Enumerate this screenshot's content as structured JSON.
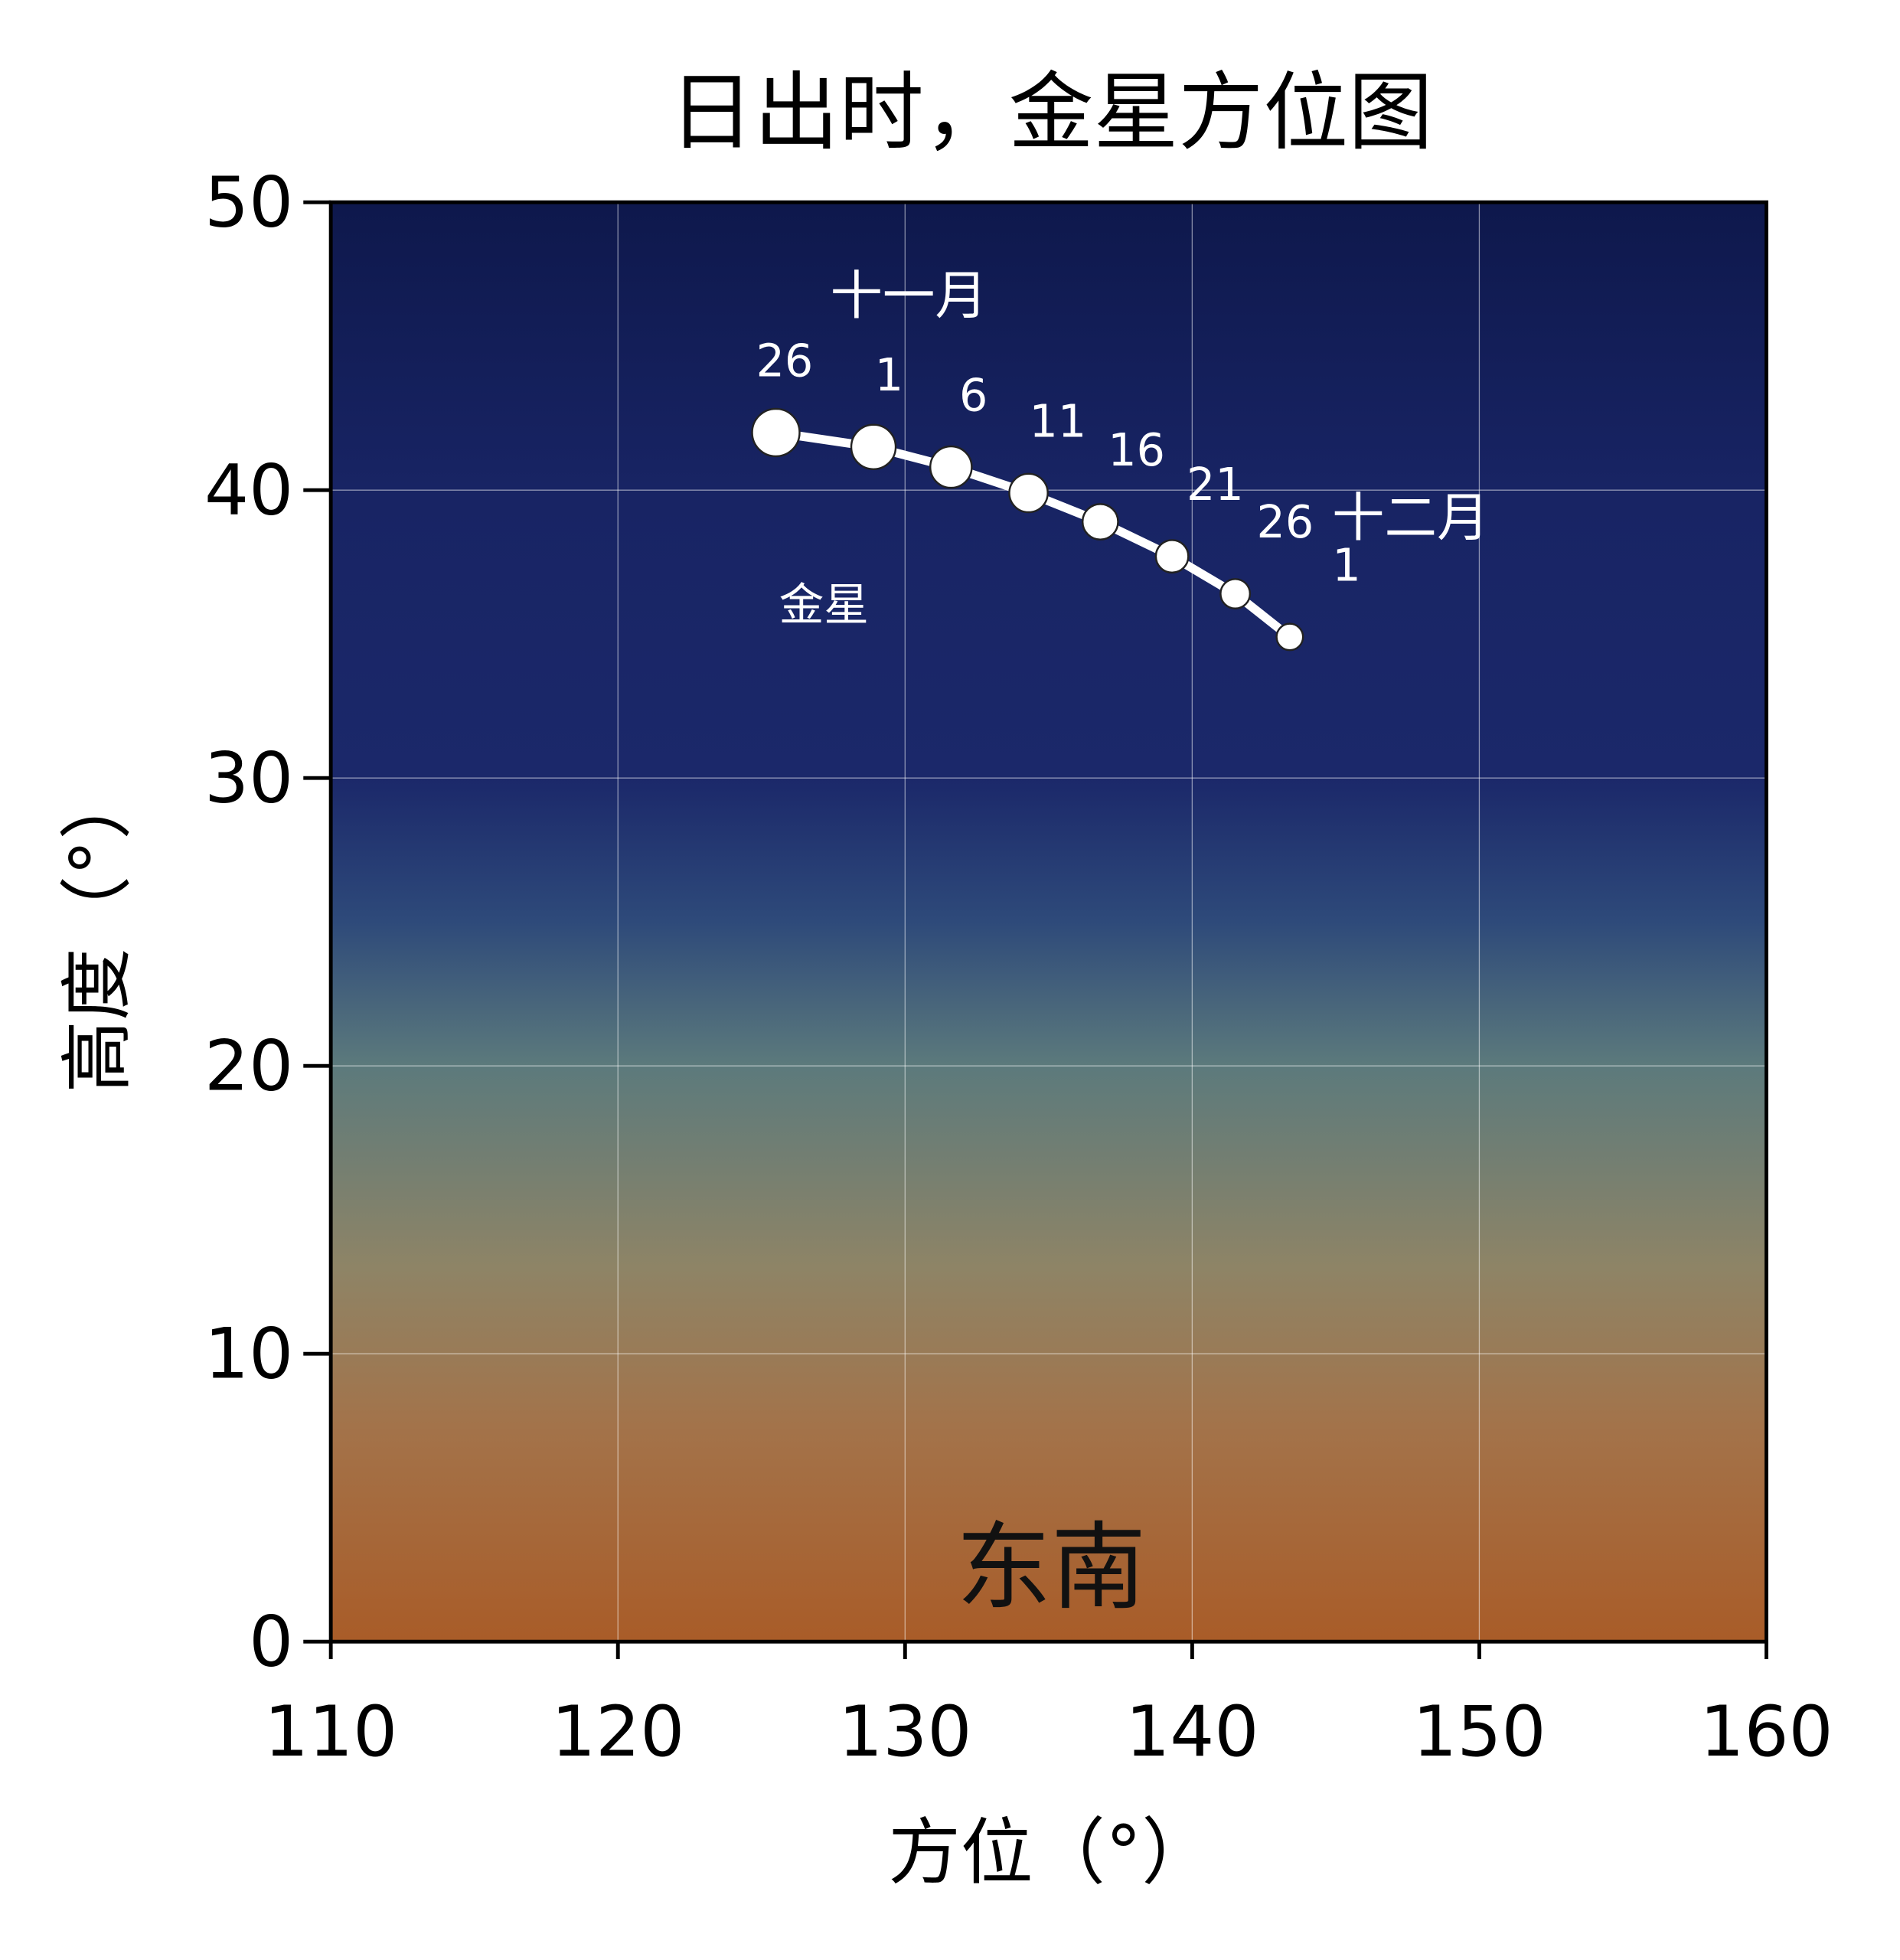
{
  "chart_data": {
    "type": "line",
    "title": "日出时，金星方位图",
    "xlabel": "方位（°）",
    "ylabel": "高度（°）",
    "xlim": [
      110,
      160
    ],
    "ylim": [
      0,
      50
    ],
    "xticks": [
      110,
      120,
      130,
      140,
      150,
      160
    ],
    "yticks": [
      0,
      10,
      20,
      30,
      40,
      50
    ],
    "grid": true,
    "series": [
      {
        "name": "金星",
        "color": "#ffffff",
        "x": [
          125.5,
          128.9,
          131.6,
          134.3,
          136.8,
          139.3,
          141.5,
          143.4
        ],
        "values": [
          42.0,
          41.5,
          40.8,
          39.9,
          38.9,
          37.7,
          36.4,
          34.9
        ],
        "point_labels": [
          "26",
          "1",
          "6",
          "11",
          "16",
          "21",
          "26",
          "1"
        ]
      }
    ],
    "annotations": [
      "十一月",
      "十二月",
      "东南"
    ]
  }
}
